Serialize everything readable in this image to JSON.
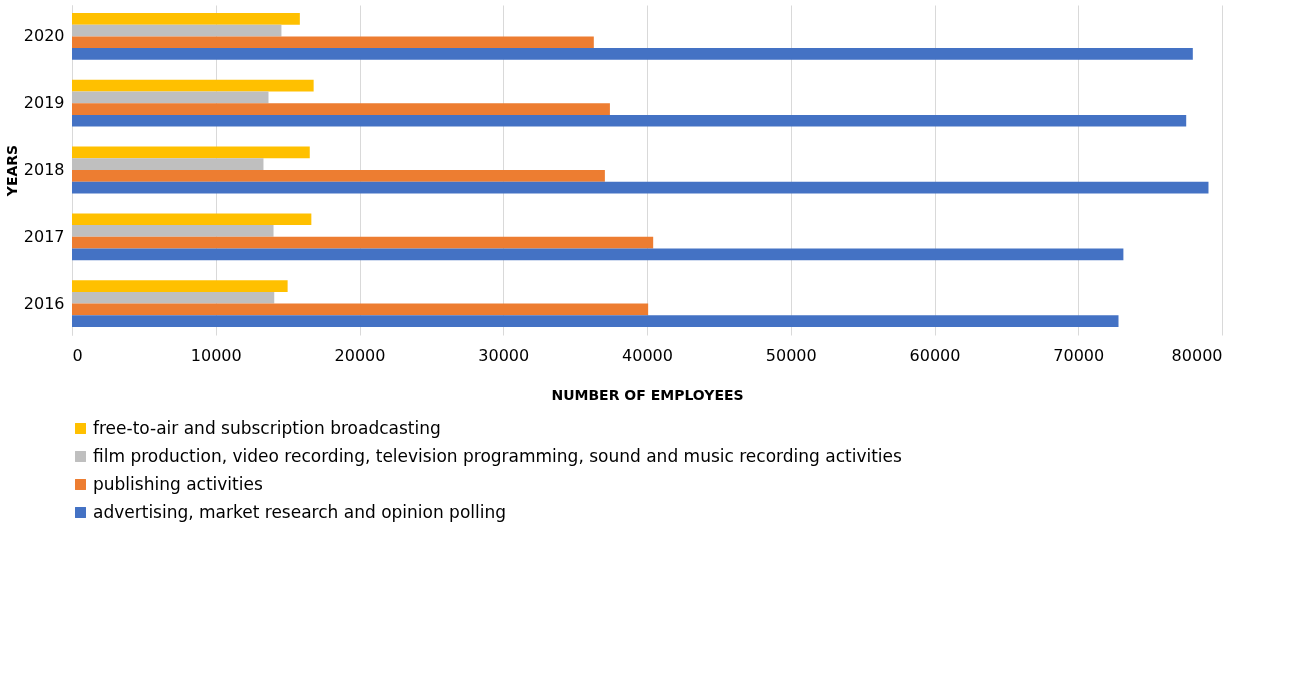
{
  "chart_data": {
    "type": "bar",
    "orientation": "horizontal",
    "xlabel": "NUMBER OF EMPLOYEES",
    "ylabel": "YEARS",
    "categories": [
      "2020",
      "2019",
      "2018",
      "2017",
      "2016"
    ],
    "series": [
      {
        "name": "free-to-air and subscription broadcasting",
        "color": "#ffc000",
        "values": [
          15850,
          16810,
          16540,
          16650,
          15000
        ]
      },
      {
        "name": "film production, video recording, television programming, sound and music recording activities",
        "color": "#bfbfbf",
        "values": [
          14570,
          13670,
          13320,
          14020,
          14070
        ]
      },
      {
        "name": "publishing activities",
        "color": "#ed7d31",
        "values": [
          36300,
          37420,
          37070,
          40430,
          40080
        ]
      },
      {
        "name": "advertising, market research and opinion polling",
        "color": "#4472c4",
        "values": [
          77970,
          77510,
          79060,
          73140,
          72800
        ]
      }
    ],
    "xlim": [
      0,
      80000
    ],
    "xticks": [
      0,
      10000,
      20000,
      30000,
      40000,
      50000,
      60000,
      70000,
      80000
    ],
    "grid": "x",
    "legend": "bottom"
  }
}
